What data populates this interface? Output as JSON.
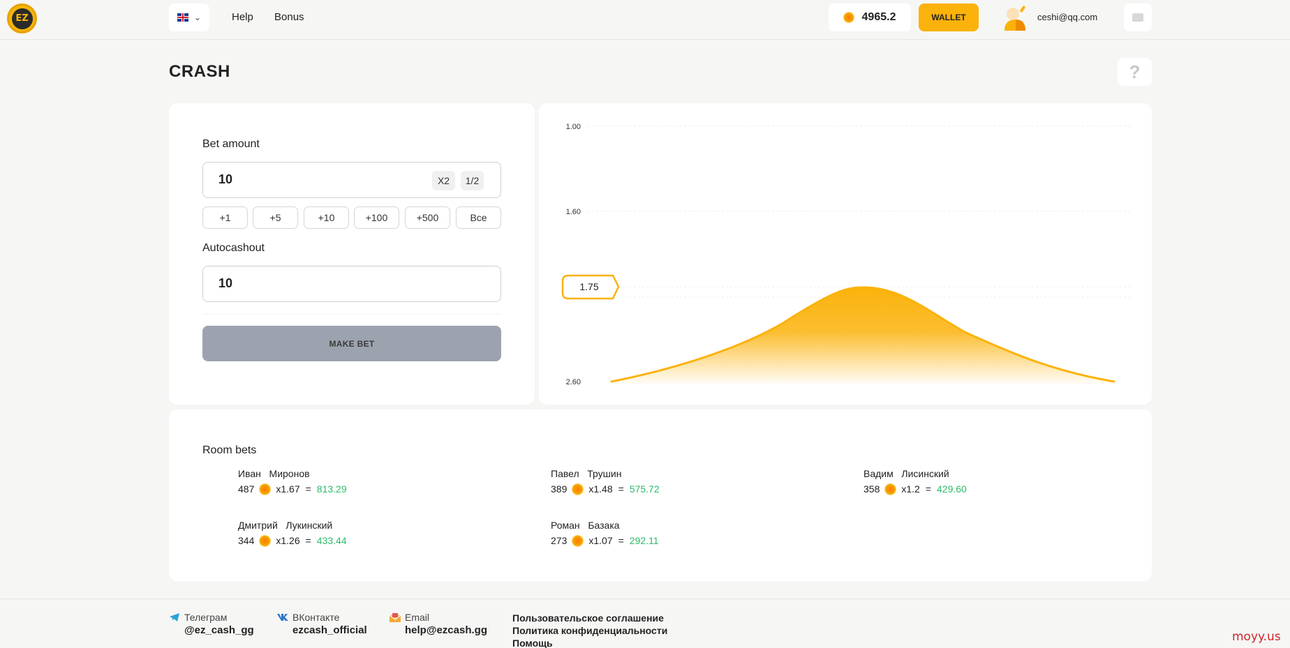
{
  "header": {
    "logo_text": "EZ",
    "nav": [
      {
        "label": "Help"
      },
      {
        "label": "Bonus"
      }
    ],
    "balance": "4965.2",
    "wallet_label": "WALLET",
    "user_email": "ceshi@qq.com"
  },
  "page": {
    "title": "CRASH",
    "help_label": "?"
  },
  "bet_form": {
    "bet_amount_label": "Bet amount",
    "bet_amount_value": "10",
    "double_label": "X2",
    "half_label": "1/2",
    "quick_buttons": [
      "+1",
      "+5",
      "+10",
      "+100",
      "+500",
      "Все"
    ],
    "autocashout_label": "Autocashout",
    "autocashout_value": "10",
    "make_bet_label": "MAKE BET"
  },
  "chart_data": {
    "type": "area",
    "y_ticks": [
      "1.00",
      "1.60",
      "2.60"
    ],
    "current_multiplier": "1.75",
    "accent_color": "#fbb20b"
  },
  "room_bets": {
    "title": "Room bets",
    "bets": [
      {
        "name": "Иван   Миронов",
        "amount": "487",
        "multiplier": "x1.67",
        "eq": "=",
        "win": "813.29"
      },
      {
        "name": "Павел   Трушин",
        "amount": "389",
        "multiplier": "x1.48",
        "eq": "=",
        "win": "575.72"
      },
      {
        "name": "Вадим   Лисинский",
        "amount": "358",
        "multiplier": "x1.2",
        "eq": "=",
        "win": "429.60"
      },
      {
        "name": "Дмитрий   Лукинский",
        "amount": "344",
        "multiplier": "x1.26",
        "eq": "=",
        "win": "433.44"
      },
      {
        "name": "Роман   Базака",
        "amount": "273",
        "multiplier": "x1.07",
        "eq": "=",
        "win": "292.11"
      }
    ]
  },
  "footer": {
    "telegram_label": "Телеграм",
    "telegram_value": "@ez_cash_gg",
    "vk_label": "ВКонтакте",
    "vk_value": "ezcash_official",
    "email_label": "Email",
    "email_value": "help@ezcash.gg",
    "links": [
      "Пользовательское соглашение",
      "Политика конфиденциальности",
      "Помощь"
    ]
  },
  "watermark": "moyy.us"
}
